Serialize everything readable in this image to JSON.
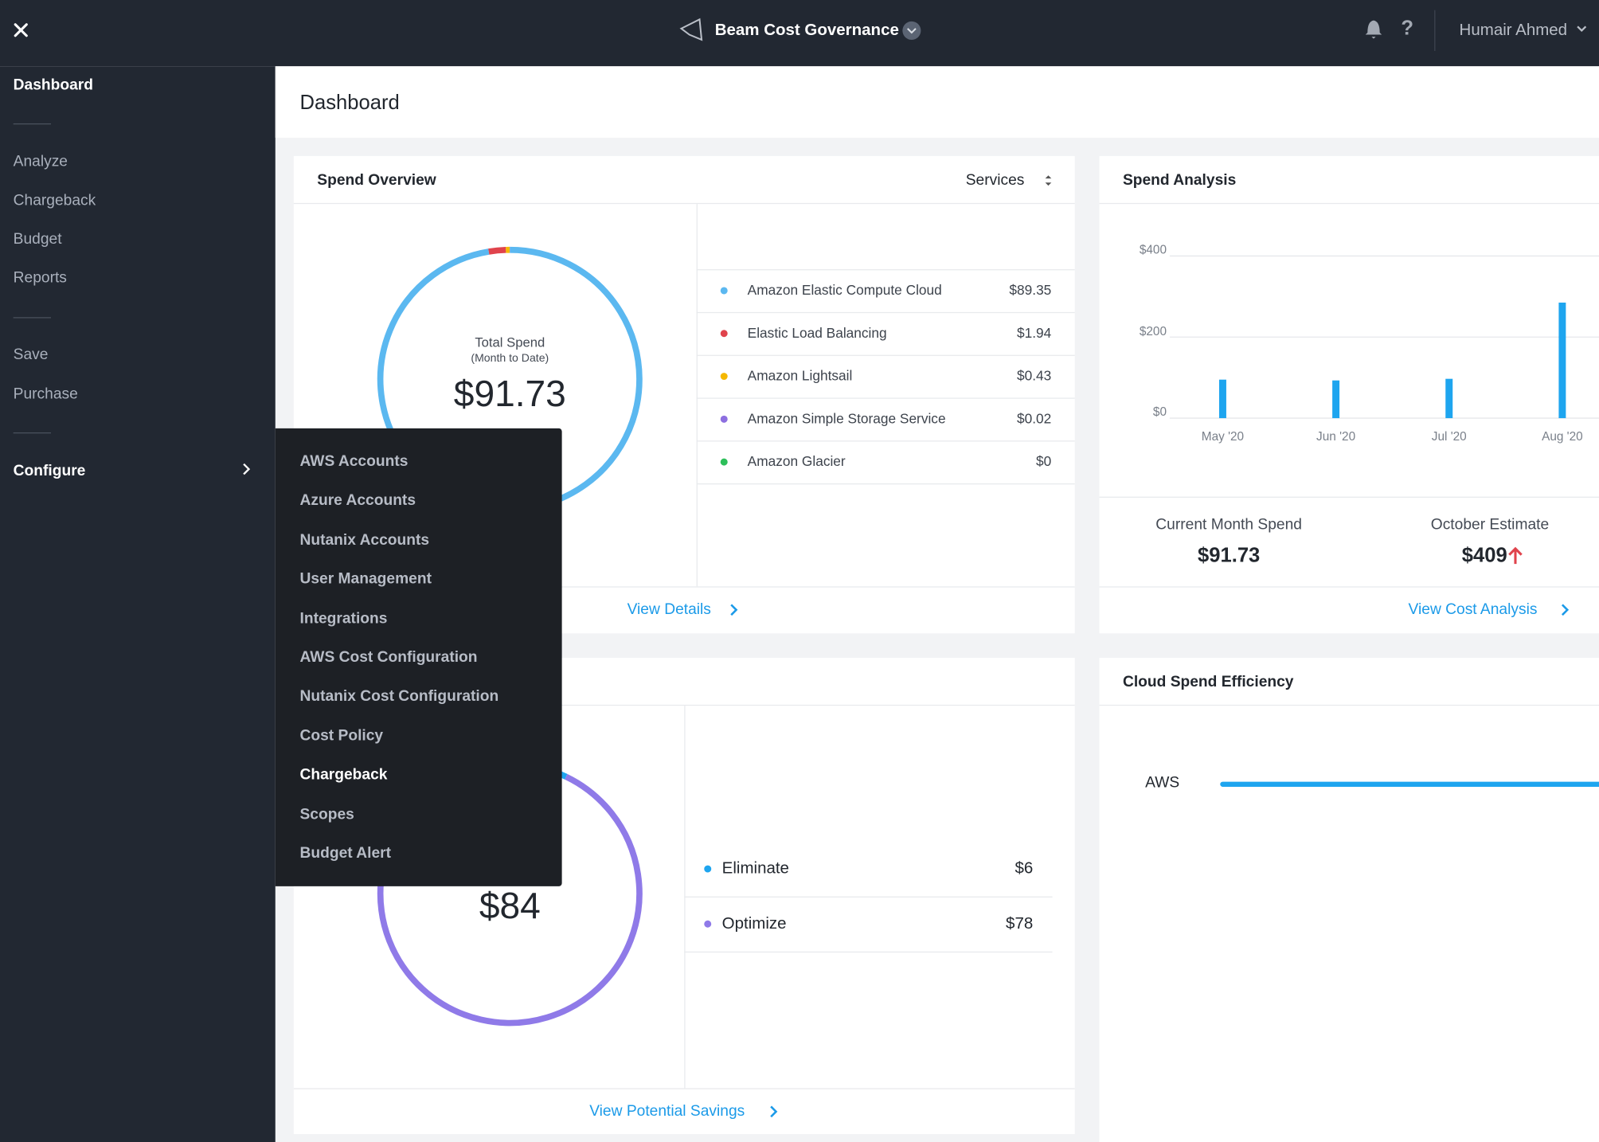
{
  "top_bar": {
    "product": "Beam Cost Governance",
    "help": "?",
    "user": "Humair Ahmed"
  },
  "sidebar": {
    "items": [
      "Dashboard",
      "Analyze",
      "Chargeback",
      "Budget",
      "Reports",
      "Save",
      "Purchase",
      "Configure"
    ]
  },
  "configure_menu": {
    "items": [
      "AWS Accounts",
      "Azure Accounts",
      "Nutanix Accounts",
      "User Management",
      "Integrations",
      "AWS Cost Configuration",
      "Nutanix Cost Configuration",
      "Cost Policy",
      "Chargeback",
      "Scopes",
      "Budget Alert"
    ],
    "highlighted": 8
  },
  "page_title": "Dashboard",
  "spend_overview": {
    "title": "Spend Overview",
    "selector": "Services",
    "donut_label": "Total Spend",
    "donut_sublabel": "(Month to Date)",
    "total": "$91.73",
    "items": [
      {
        "name": "Amazon Elastic Compute Cloud",
        "amount": "$89.35",
        "value": 89.35,
        "color": "#5bb8f0"
      },
      {
        "name": "Elastic Load Balancing",
        "amount": "$1.94",
        "value": 1.94,
        "color": "#e0434c"
      },
      {
        "name": "Amazon Lightsail",
        "amount": "$0.43",
        "value": 0.43,
        "color": "#f5b800"
      },
      {
        "name": "Amazon Simple Storage Service",
        "amount": "$0.02",
        "value": 0.02,
        "color": "#8d6fe0"
      },
      {
        "name": "Amazon Glacier",
        "amount": "$0",
        "value": 0,
        "color": "#2dbf5a"
      }
    ],
    "link": "View Details"
  },
  "spend_analysis": {
    "title": "Spend Analysis",
    "chart": {
      "type": "bar",
      "categories": [
        "May '20",
        "Jun '20",
        "Jul '20",
        "Aug '20"
      ],
      "values": [
        95,
        93,
        97,
        285
      ],
      "color": "#1ea5ef",
      "ylim": [
        0,
        400
      ],
      "yticks": [
        {
          "value": 0,
          "label": "$0"
        },
        {
          "value": 200,
          "label": "$200"
        },
        {
          "value": 400,
          "label": "$400"
        }
      ],
      "grid": true
    },
    "current_label": "Current Month Spend",
    "current_value": "$91.73",
    "estimate_label": "October Estimate",
    "estimate_value": "$409",
    "link": "View Cost Analysis"
  },
  "savings": {
    "total": "$84",
    "items": [
      {
        "name": "Eliminate",
        "amount": "$6",
        "value": 6,
        "color": "#1ea5ef"
      },
      {
        "name": "Optimize",
        "amount": "$78",
        "value": 78,
        "color": "#8f7ae8"
      }
    ],
    "link": "View Potential Savings"
  },
  "efficiency": {
    "title": "Cloud Spend Efficiency",
    "rows": [
      {
        "name": "AWS",
        "color": "#1ea5ef"
      }
    ]
  }
}
